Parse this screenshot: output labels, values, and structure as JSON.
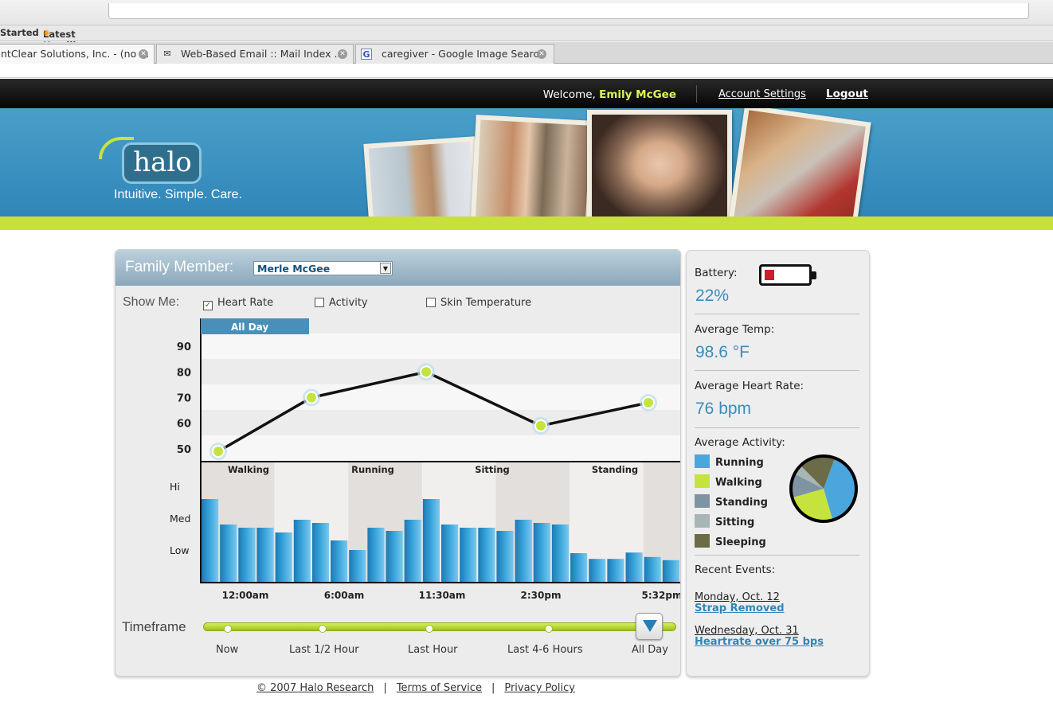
{
  "browser": {
    "bookmarks": [
      "Started",
      "Latest Headlines"
    ],
    "tabs": [
      {
        "title": "ntClear Solutions, Inc. - (no ..."
      },
      {
        "title": "Web-Based Email :: Mail Index ..."
      },
      {
        "title": "caregiver - Google Image Search"
      }
    ]
  },
  "header": {
    "welcome_prefix": "Welcome,",
    "user_name": "Emily McGee",
    "account_settings": "Account Settings",
    "logout": "Logout"
  },
  "banner": {
    "logo_text": "halo",
    "tagline": "Intuitive. Simple. Care."
  },
  "panel": {
    "family_member_label": "Family Member:",
    "family_member_value": "Merle McGee",
    "show_me_label": "Show Me:",
    "options": [
      {
        "label": "Heart Rate",
        "checked": true
      },
      {
        "label": "Activity",
        "checked": false
      },
      {
        "label": "Skin Temperature",
        "checked": false
      }
    ],
    "timeframe_label": "Timeframe",
    "timeframe_options": [
      "Now",
      "Last 1/2 Hour",
      "Last Hour",
      "Last 4-6 Hours",
      "All Day"
    ],
    "timeframe_selected": "All Day"
  },
  "chart_data": [
    {
      "type": "line",
      "series_tab": "All Day",
      "y_ticks": [
        90,
        80,
        70,
        60,
        50
      ],
      "ylim": [
        45,
        95
      ],
      "values": [
        49,
        70,
        80,
        59,
        68
      ]
    },
    {
      "type": "bar",
      "y_tick_labels": [
        "Hi",
        "Med",
        "Low"
      ],
      "activity_bands": [
        "Walking",
        "Running",
        "Sitting",
        "Standing"
      ],
      "x_tick_labels": [
        "12:00am",
        "6:00am",
        "11:30am",
        "2:30pm",
        "5:32pm"
      ],
      "values": [
        2.6,
        1.8,
        1.7,
        1.7,
        1.55,
        1.95,
        1.85,
        1.3,
        1.0,
        1.7,
        1.6,
        1.95,
        2.6,
        1.8,
        1.7,
        1.7,
        1.6,
        1.95,
        1.85,
        1.8,
        0.9,
        0.72,
        0.72,
        0.92,
        0.78,
        0.68
      ]
    }
  ],
  "stats": {
    "battery_label": "Battery:",
    "battery_value": "22%",
    "battery_level": 0.22,
    "avg_temp_label": "Average Temp:",
    "avg_temp_value": "98.6 °F",
    "avg_hr_label": "Average Heart Rate:",
    "avg_hr_value": "76 bpm",
    "avg_activity_label": "Average Activity:",
    "activity_legend": [
      {
        "label": "Running",
        "color": "#4aa6dd",
        "share": 0.4
      },
      {
        "label": "Walking",
        "color": "#c5e33c",
        "share": 0.25
      },
      {
        "label": "Standing",
        "color": "#7f94a2",
        "share": 0.12
      },
      {
        "label": "Sitting",
        "color": "#a7b5b5",
        "share": 0.05
      },
      {
        "label": "Sleeping",
        "color": "#6c6b48",
        "share": 0.18
      }
    ],
    "recent_events_label": "Recent Events:",
    "events": [
      {
        "date": "Monday, Oct. 12",
        "text": "Strap Removed"
      },
      {
        "date": "Wednesday, Oct. 31",
        "text": "Heartrate over 75 bps"
      }
    ]
  },
  "footer": {
    "copyright": "© 2007 Halo Research",
    "terms": "Terms of Service",
    "privacy": "Privacy Policy"
  }
}
